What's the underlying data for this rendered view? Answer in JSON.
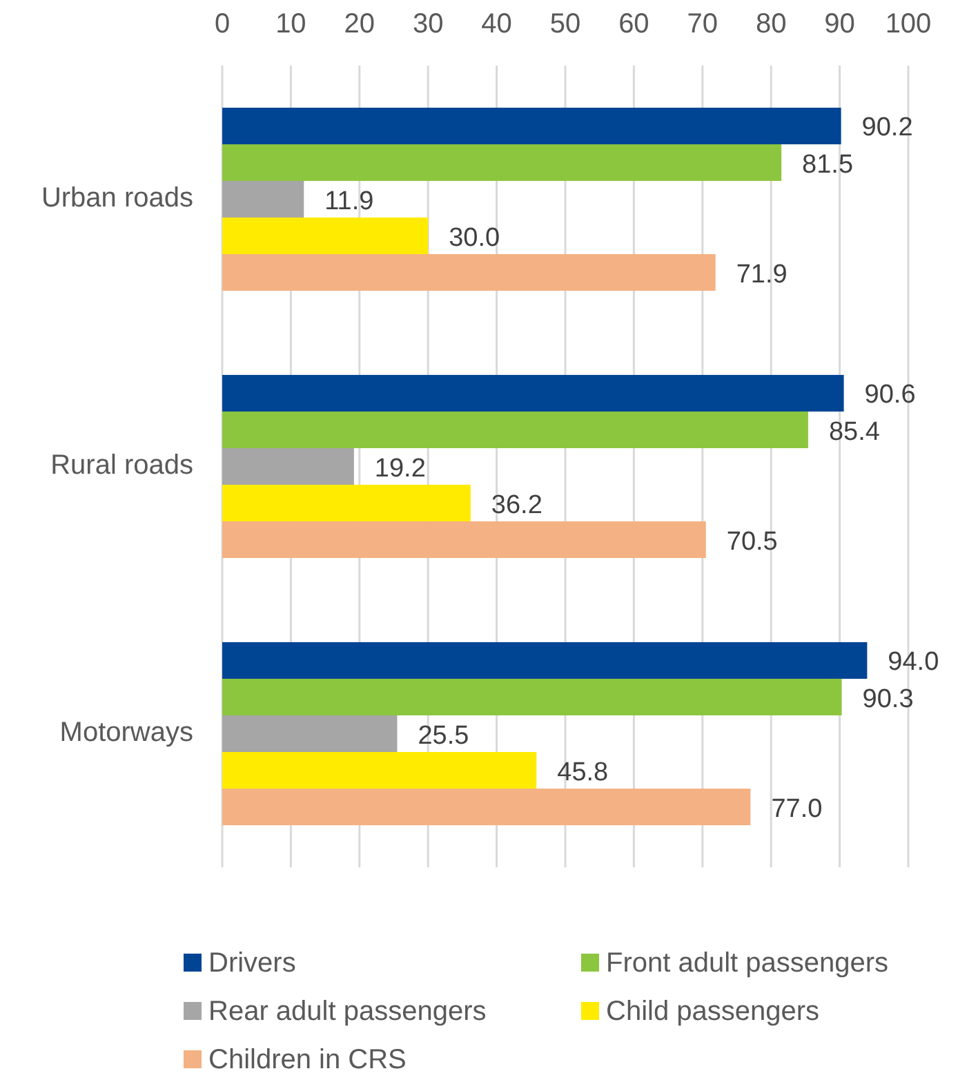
{
  "chart_data": {
    "type": "bar",
    "orientation": "horizontal",
    "categories": [
      "Urban roads",
      "Rural roads",
      "Motorways"
    ],
    "series": [
      {
        "name": "Drivers",
        "color": "#004494",
        "values": [
          90.2,
          90.6,
          94.0
        ],
        "value_labels": [
          "90.2",
          "90.6",
          "94.0"
        ]
      },
      {
        "name": "Front adult passengers",
        "color": "#8cc63f",
        "values": [
          81.5,
          85.4,
          90.3
        ],
        "value_labels": [
          "81.5",
          "85.4",
          "90.3"
        ]
      },
      {
        "name": "Rear adult passengers",
        "color": "#a6a6a6",
        "values": [
          11.9,
          19.2,
          25.5
        ],
        "value_labels": [
          "11.9",
          "19.2",
          "25.5"
        ]
      },
      {
        "name": "Child passengers",
        "color": "#ffeb00",
        "values": [
          30.0,
          36.2,
          45.8
        ],
        "value_labels": [
          "30.0",
          "36.2",
          "45.8"
        ]
      },
      {
        "name": "Children in CRS",
        "color": "#f4b183",
        "values": [
          71.9,
          70.5,
          77.0
        ],
        "value_labels": [
          "71.9",
          "70.5",
          "77.0"
        ]
      }
    ],
    "xlim": [
      0,
      100
    ],
    "xticks": [
      0,
      10,
      20,
      30,
      40,
      50,
      60,
      70,
      80,
      90,
      100
    ],
    "grid": "x",
    "legend": "bottom"
  }
}
